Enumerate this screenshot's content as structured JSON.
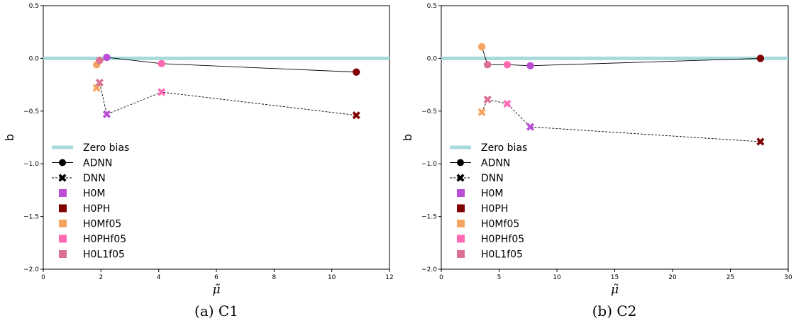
{
  "chart_data": [
    {
      "type": "scatter",
      "caption": "(a) C1",
      "xlabel": "μ̃",
      "ylabel": "b",
      "xlim": [
        0,
        12
      ],
      "ylim": [
        -2.0,
        0.5
      ],
      "xticks": [
        0,
        2,
        4,
        6,
        8,
        10,
        12
      ],
      "yticks": [
        -2.0,
        -1.5,
        -1.0,
        -0.5,
        0.0,
        0.5
      ],
      "xtick_labels": [
        "0",
        "2",
        "4",
        "6",
        "8",
        "10",
        "12"
      ],
      "ytick_labels": [
        "−2.0",
        "−1.5",
        "−1.0",
        "−0.5",
        "0.0",
        "0.5"
      ],
      "reference_line": {
        "name": "Zero bias",
        "y": 0.0,
        "color": "#a8dadc"
      },
      "line_series": [
        {
          "name": "ADNN",
          "style": "solid",
          "marker": "circle",
          "order": [
            "H0L1f05",
            "H0Mf05",
            "H0M",
            "H0PHf05",
            "H0PH"
          ]
        },
        {
          "name": "DNN",
          "style": "dashed",
          "marker": "x",
          "order": [
            "H0Mf05",
            "H0L1f05",
            "H0M",
            "H0PHf05",
            "H0PH"
          ]
        }
      ],
      "points": [
        {
          "name": "H0M",
          "color": "#b94fd4",
          "adnn": [
            2.2,
            0.01
          ],
          "dnn": [
            2.2,
            -0.53
          ]
        },
        {
          "name": "H0PH",
          "color": "#800000",
          "adnn": [
            10.85,
            -0.13
          ],
          "dnn": [
            10.85,
            -0.54
          ]
        },
        {
          "name": "H0Mf05",
          "color": "#f4a460",
          "adnn": [
            1.85,
            -0.06
          ],
          "dnn": [
            1.85,
            -0.28
          ]
        },
        {
          "name": "H0PHf05",
          "color": "#ff69b4",
          "adnn": [
            4.1,
            -0.05
          ],
          "dnn": [
            4.1,
            -0.32
          ]
        },
        {
          "name": "H0L1f05",
          "color": "#db7093",
          "adnn": [
            1.95,
            -0.02
          ],
          "dnn": [
            1.95,
            -0.23
          ]
        }
      ],
      "legend": {
        "location": "lower-left",
        "entries": [
          "Zero bias",
          "ADNN",
          "DNN",
          "H0M",
          "H0PH",
          "H0Mf05",
          "H0PHf05",
          "H0L1f05"
        ]
      }
    },
    {
      "type": "scatter",
      "caption": "(b) C2",
      "xlabel": "μ̃",
      "ylabel": "b",
      "xlim": [
        0,
        30
      ],
      "ylim": [
        -2.0,
        0.5
      ],
      "xticks": [
        0,
        5,
        10,
        15,
        20,
        25,
        30
      ],
      "yticks": [
        -2.0,
        -1.5,
        -1.0,
        -0.5,
        0.0,
        0.5
      ],
      "xtick_labels": [
        "0",
        "5",
        "10",
        "15",
        "20",
        "25",
        "30"
      ],
      "ytick_labels": [
        "−2.0",
        "−1.5",
        "−1.0",
        "−0.5",
        "0.0",
        "0.5"
      ],
      "reference_line": {
        "name": "Zero bias",
        "y": 0.0,
        "color": "#a8dadc"
      },
      "line_series": [
        {
          "name": "ADNN",
          "style": "solid",
          "marker": "circle",
          "order": [
            "H0Mf05",
            "H0L1f05",
            "H0PHf05",
            "H0M",
            "H0PH"
          ]
        },
        {
          "name": "DNN",
          "style": "dashed",
          "marker": "x",
          "order": [
            "H0Mf05",
            "H0L1f05",
            "H0PHf05",
            "H0M",
            "H0PH"
          ]
        }
      ],
      "points": [
        {
          "name": "H0M",
          "color": "#b94fd4",
          "adnn": [
            7.7,
            -0.07
          ],
          "dnn": [
            7.7,
            -0.65
          ]
        },
        {
          "name": "H0PH",
          "color": "#800000",
          "adnn": [
            27.6,
            0.0
          ],
          "dnn": [
            27.6,
            -0.79
          ]
        },
        {
          "name": "H0Mf05",
          "color": "#f4a460",
          "adnn": [
            3.5,
            0.11
          ],
          "dnn": [
            3.5,
            -0.51
          ]
        },
        {
          "name": "H0PHf05",
          "color": "#ff69b4",
          "adnn": [
            5.7,
            -0.06
          ],
          "dnn": [
            5.7,
            -0.43
          ]
        },
        {
          "name": "H0L1f05",
          "color": "#db7093",
          "adnn": [
            4.0,
            -0.06
          ],
          "dnn": [
            4.0,
            -0.39
          ]
        }
      ],
      "legend": {
        "location": "lower-left",
        "entries": [
          "Zero bias",
          "ADNN",
          "DNN",
          "H0M",
          "H0PH",
          "H0Mf05",
          "H0PHf05",
          "H0L1f05"
        ]
      }
    }
  ]
}
